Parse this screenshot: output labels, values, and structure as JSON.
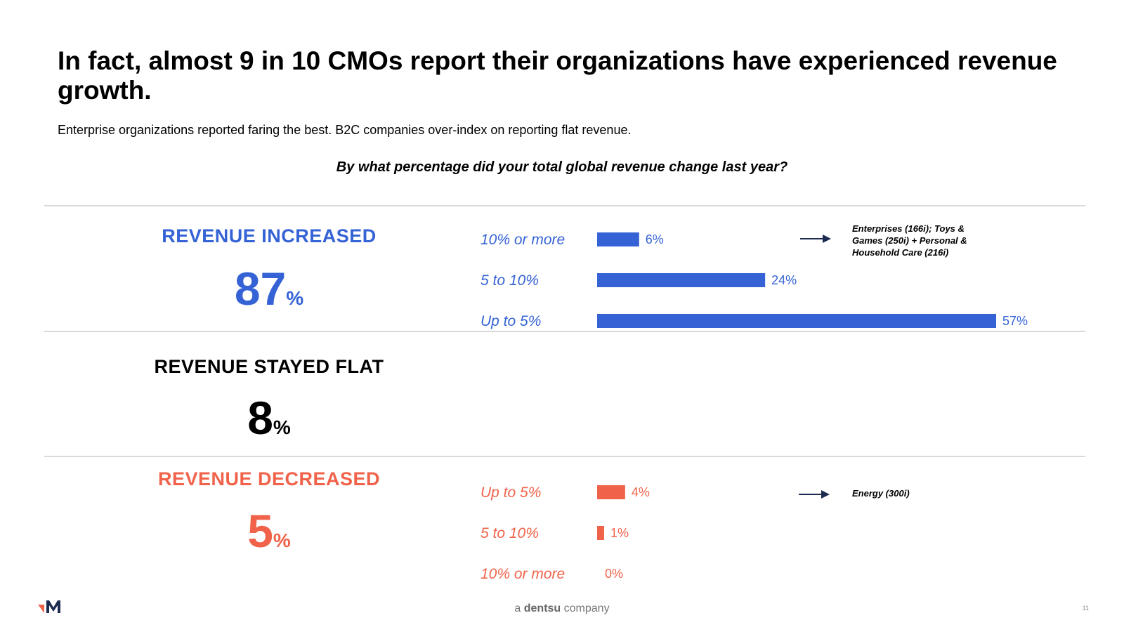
{
  "title": "In fact, almost 9 in 10 CMOs report their organizations have experienced revenue growth.",
  "subtitle": "Enterprise organizations reported faring the best. B2C companies over-index on reporting flat revenue.",
  "question": "By what percentage did your total global revenue change last year?",
  "categories": {
    "increased": {
      "label": "REVENUE INCREASED",
      "value": "87",
      "pct": "%"
    },
    "flat": {
      "label": "REVENUE STAYED FLAT",
      "value": "8",
      "pct": "%"
    },
    "decreased": {
      "label": "REVENUE DECREASED",
      "value": "5",
      "pct": "%"
    }
  },
  "notes": {
    "increased": "Enterprises (166i); Toys & Games (250i) + Personal & Household Care (216i)",
    "decreased": "Energy (300i)"
  },
  "footer": {
    "prefix": "a ",
    "brand": "dentsu",
    "suffix": " company",
    "page": "11"
  },
  "colors": {
    "increased": "#3563d6",
    "flat": "#000000",
    "decreased": "#f0634a",
    "rule": "#d9d9d9",
    "arrow": "#1c2b50"
  },
  "chart_data": {
    "type": "bar",
    "orientation": "horizontal",
    "title": "By what percentage did your total global revenue change last year?",
    "xlim": [
      0,
      57
    ],
    "series": [
      {
        "name": "Revenue increased",
        "categories": [
          "10% or more",
          "5 to 10%",
          "Up to 5%"
        ],
        "values": [
          6,
          24,
          57
        ],
        "labels": [
          "6%",
          "24%",
          "57%"
        ]
      },
      {
        "name": "Revenue decreased",
        "categories": [
          "Up to 5%",
          "5 to 10%",
          "10% or more"
        ],
        "values": [
          4,
          1,
          0
        ],
        "labels": [
          "4%",
          "1%",
          "0%"
        ]
      }
    ]
  }
}
